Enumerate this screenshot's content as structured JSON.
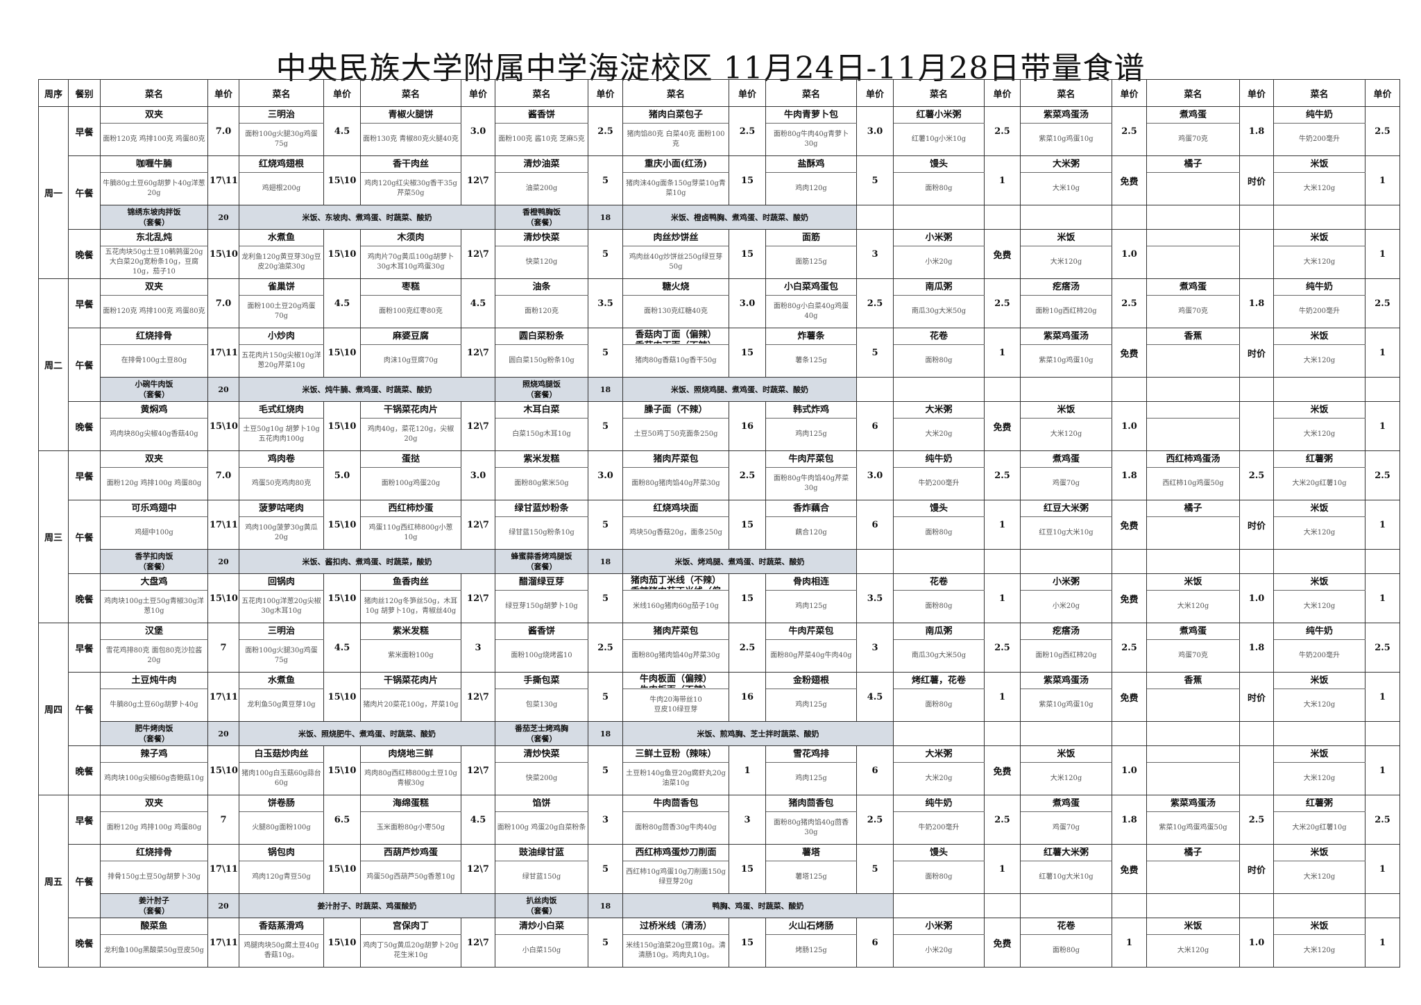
{
  "title": "中央民族大学附属中学海淀校区 11月24日-11月28日带量食谱",
  "header": {
    "week": "周序",
    "meal": "餐别",
    "dish": "菜名",
    "price": "单价"
  },
  "meal_labels": {
    "breakfast": "早餐",
    "lunch": "午餐",
    "dinner": "晚餐"
  },
  "set_bg_color": "#d6dce4",
  "days": [
    {
      "label": "周一",
      "breakfast": [
        [
          "双夹",
          "面粉120克 鸡排100克 鸡蛋80克",
          "7.0"
        ],
        [
          "三明治",
          "面粉100g火腿30g鸡蛋75g",
          "4.5"
        ],
        [
          "青椒火腿饼",
          "面粉130克 青椒80克火腿40克",
          "3.0"
        ],
        [
          "酱香饼",
          "面粉100克 酱10克 芝麻5克",
          "2.5"
        ],
        [
          "猪肉白菜包子",
          "猪肉馅80克 白菜40克 面粉100克",
          "2.5"
        ],
        [
          "牛肉青萝卜包",
          "面粉80g牛肉40g青萝卜30g",
          "3.0"
        ],
        [
          "红薯小米粥",
          "红薯10g小米10g",
          "2.5"
        ],
        [
          "紫菜鸡蛋汤",
          "紫菜10g鸡蛋10g",
          "2.5"
        ],
        [
          "煮鸡蛋",
          "鸡蛋70克",
          "1.8"
        ],
        [
          "纯牛奶",
          "牛奶200毫升",
          "2.5"
        ]
      ],
      "lunch": [
        [
          "咖喱牛腩",
          "牛腩80g土豆60g胡萝卜40g洋葱20g",
          "17\\11"
        ],
        [
          "红烧鸡翅根",
          "鸡翅根200g",
          "15\\10"
        ],
        [
          "香干肉丝",
          "鸡肉120g红尖椒30g香干35g芹菜50g",
          "12\\7"
        ],
        [
          "清炒油菜",
          "油菜200g",
          "5"
        ],
        [
          "重庆小面(红汤)",
          "猪肉沫40g面条150g芽菜10g青菜10g",
          "15"
        ],
        [
          "盐酥鸡",
          "鸡肉120g",
          "5"
        ],
        [
          "馒头",
          "面粉80g",
          "1"
        ],
        [
          "大米粥",
          "大米10g",
          "免费"
        ],
        [
          "橘子",
          "",
          "时价"
        ],
        [
          "米饭",
          "大米120g",
          "1"
        ]
      ],
      "sets": [
        [
          "锦绣东坡肉拌饭\n（套餐）",
          "20",
          "米饭、东坡肉、煮鸡蛋、时蔬菜、酸奶"
        ],
        [
          "香橙鸭胸饭\n（套餐）",
          "18",
          "米饭、橙卤鸭胸、煮鸡蛋、时蔬菜、酸奶"
        ]
      ],
      "dinner": [
        [
          "东北乱炖",
          "五花肉块50g土豆10鹌鹑蛋20g大白菜20g宽粉条10g，豆腐10g，茄子10",
          "15\\10"
        ],
        [
          "水煮鱼",
          "龙利鱼120g黄豆芽30g豆皮20g油菜30g",
          "15\\10"
        ],
        [
          "木须肉",
          "鸡肉片70g黄瓜100g胡萝卜30g木耳10g鸡蛋30g",
          "12\\7"
        ],
        [
          "清炒快菜",
          "快菜120g",
          "5"
        ],
        [
          "肉丝炒饼丝",
          "鸡肉丝40g炒饼丝250g绿豆芽50g",
          "15"
        ],
        [
          "面筋",
          "面筋125g",
          "3"
        ],
        [
          "小米粥",
          "小米20g",
          "免费"
        ],
        [
          "米饭",
          "大米120g",
          "1.0"
        ],
        [
          "",
          "",
          ""
        ],
        [
          "米饭",
          "大米120g",
          "1"
        ]
      ]
    },
    {
      "label": "周二",
      "breakfast": [
        [
          "双夹",
          "面粉120克 鸡排100克 鸡蛋80克",
          "7.0"
        ],
        [
          "雀巢饼",
          "面粉100土豆20g鸡蛋70g",
          "4.5"
        ],
        [
          "枣糕",
          "面粉100克红枣80克",
          "4.5"
        ],
        [
          "油条",
          "面粉120克",
          "3.5"
        ],
        [
          "糖火烧",
          "面粉130克红糖40克",
          "3.0"
        ],
        [
          "小白菜鸡蛋包",
          "面粉80g小白菜40g鸡蛋40g",
          "2.5"
        ],
        [
          "南瓜粥",
          "南瓜30g大米50g",
          "2.5"
        ],
        [
          "疙瘩汤",
          "面粉10g西红柿20g",
          "2.5"
        ],
        [
          "煮鸡蛋",
          "鸡蛋70克",
          "1.8"
        ],
        [
          "纯牛奶",
          "牛奶200毫升",
          "2.5"
        ]
      ],
      "lunch": [
        [
          "红烧排骨",
          "在排骨100g土豆80g",
          "17\\11"
        ],
        [
          "小炒肉",
          "五花肉片150g尖椒10g洋葱20g芹菜10g",
          "15\\10"
        ],
        [
          "麻婆豆腐",
          "肉沫10g豆腐70g",
          "12\\7"
        ],
        [
          "圆白菜粉条",
          "圆白菜150g粉条10g",
          "5"
        ],
        [
          "香菇肉丁面（偏辣）\n香菇肉丁面（不辣）",
          "猪肉80g香菇10g香干50g",
          "15"
        ],
        [
          "炸薯条",
          "薯条125g",
          "5"
        ],
        [
          "花卷",
          "面粉80g",
          "1"
        ],
        [
          "紫菜鸡蛋汤",
          "紫菜10g鸡蛋10g",
          "免费"
        ],
        [
          "香蕉",
          "",
          "时价"
        ],
        [
          "米饭",
          "大米120g",
          "1"
        ]
      ],
      "sets": [
        [
          "小碗牛肉饭\n（套餐）",
          "20",
          "米饭、炖牛腩、煮鸡蛋、时蔬菜、酸奶"
        ],
        [
          "照烧鸡腿饭\n（套餐）",
          "18",
          "米饭、照烧鸡腿、煮鸡蛋、时蔬菜、酸奶"
        ]
      ],
      "dinner": [
        [
          "黄焖鸡",
          "鸡肉块80g尖椒40g香菇40g",
          "15\\10"
        ],
        [
          "毛式红烧肉",
          "土豆50g10g 胡萝卜10g五花肉肉100g",
          "15\\10"
        ],
        [
          "干锅菜花肉片",
          "鸡肉40g，菜花120g，尖椒20g",
          "12\\7"
        ],
        [
          "木耳白菜",
          "白菜150g木耳10g",
          "5"
        ],
        [
          "臊子面（不辣）",
          "土豆50鸡丁50克面条250g",
          "16"
        ],
        [
          "韩式炸鸡",
          "鸡肉125g",
          "6"
        ],
        [
          "大米粥",
          "大米20g",
          "免费"
        ],
        [
          "米饭",
          "大米120g",
          "1.0"
        ],
        [
          "",
          "",
          ""
        ],
        [
          "米饭",
          "大米120g",
          "1"
        ]
      ]
    },
    {
      "label": "周三",
      "breakfast": [
        [
          "双夹",
          "面粉120g 鸡排100g 鸡蛋80g",
          "7.0"
        ],
        [
          "鸡肉卷",
          "鸡蛋50克鸡肉80克",
          "5.0"
        ],
        [
          "蛋挞",
          "面粉100g鸡蛋20g",
          "3.0"
        ],
        [
          "紫米发糕",
          "面粉80g紫米50g",
          "3.0"
        ],
        [
          "猪肉芹菜包",
          "面粉80g猪肉馅40g芹菜30g",
          "2.5"
        ],
        [
          "牛肉芹菜包",
          "面粉80g牛肉馅40g芹菜30g",
          "3.0"
        ],
        [
          "纯牛奶",
          "牛奶200毫升",
          "2.5"
        ],
        [
          "煮鸡蛋",
          "鸡蛋70g",
          "1.8"
        ],
        [
          "西红柿鸡蛋汤",
          "西红柿10g鸡蛋50g",
          "2.5"
        ],
        [
          "红薯粥",
          "大米20g红薯10g",
          "2.5"
        ]
      ],
      "lunch": [
        [
          "可乐鸡翅中",
          "鸡翅中100g",
          "17\\11"
        ],
        [
          "菠萝咕咾肉",
          "鸡肉100g菠萝30g黄瓜20g",
          "15\\10"
        ],
        [
          "西红柿炒蛋",
          "鸡蛋110g西红柿800g小葱10g",
          "12\\7"
        ],
        [
          "绿甘蓝炒粉条",
          "绿甘蓝150g粉条10g",
          "5"
        ],
        [
          "红烧鸡块面",
          "鸡块50g香菇20g，面条250g",
          "15"
        ],
        [
          "香炸藕合",
          "藕合120g",
          "6"
        ],
        [
          "馒头",
          "面粉80g",
          "1"
        ],
        [
          "红豆大米粥",
          "红豆10g大米10g",
          "免费"
        ],
        [
          "橘子",
          "",
          "时价"
        ],
        [
          "米饭",
          "大米120g",
          "1"
        ]
      ],
      "sets": [
        [
          "香芋扣肉饭\n（套餐）",
          "20",
          "米饭、酱扣肉、煮鸡蛋、时蔬菜，酸奶"
        ],
        [
          "蜂蜜蒜香烤鸡腿饭\n（套餐）",
          "18",
          "米饭、烤鸡腿、煮鸡蛋、时蔬菜、酸奶"
        ]
      ],
      "dinner": [
        [
          "大盘鸡",
          "鸡肉块100g土豆50g青椒30g洋葱10g",
          "15\\10"
        ],
        [
          "回锅肉",
          "五花肉100g洋葱20g尖椒30g木耳10g",
          "15\\10"
        ],
        [
          "鱼香肉丝",
          "猪肉丝120g冬笋丝50g，木耳10g 胡萝卜10g，青椒丝40g",
          "12\\7"
        ],
        [
          "醋溜绿豆芽",
          "绿豆芽150g胡萝卜10g",
          "5"
        ],
        [
          "猪肉茄丁米线（不辣）\n香辣猪肉茄丁米线（偏辣）",
          "米线160g猪肉60g茄子10g",
          "15"
        ],
        [
          "骨肉相连",
          "鸡肉125g",
          "3.5"
        ],
        [
          "花卷",
          "面粉80g",
          "1"
        ],
        [
          "小米粥",
          "小米20g",
          "免费"
        ],
        [
          "米饭",
          "大米120g",
          "1.0"
        ],
        [
          "米饭",
          "大米120g",
          "1"
        ]
      ]
    },
    {
      "label": "周四",
      "breakfast": [
        [
          "汉堡",
          "雪花鸡排80克 面包80克沙拉酱20g",
          "7"
        ],
        [
          "三明治",
          "面粉100g火腿30g鸡蛋75g",
          "4.5"
        ],
        [
          "紫米发糕",
          "紫米面粉100g",
          "3"
        ],
        [
          "酱香饼",
          "面粉100g烧烤酱10",
          "2.5"
        ],
        [
          "猪肉芹菜包",
          "面粉80g猪肉馅40g芹菜30g",
          "2.5"
        ],
        [
          "牛肉芹菜包",
          "面粉80g芹菜40g牛肉40g",
          "3"
        ],
        [
          "南瓜粥",
          "南瓜30g大米50g",
          "2.5"
        ],
        [
          "疙瘩汤",
          "面粉10g西红柿20g",
          "2.5"
        ],
        [
          "煮鸡蛋",
          "鸡蛋70克",
          "1.8"
        ],
        [
          "纯牛奶",
          "牛奶200毫升",
          "2.5"
        ]
      ],
      "lunch": [
        [
          "土豆炖牛肉",
          "牛腩80g土豆60g胡萝卜40g",
          "17\\11"
        ],
        [
          "水煮鱼",
          "龙利鱼50g黄豆芽10g",
          "15\\10"
        ],
        [
          "干锅菜花肉片",
          "猪肉片20菜花100g，芹菜10g",
          "12\\7"
        ],
        [
          "手撕包菜",
          "包菜130g",
          "5"
        ],
        [
          "牛肉板面（偏辣）\n牛肉板面（不辣）",
          "牛肉20海带丝10\n豆皮10绿豆芽",
          "16"
        ],
        [
          "金粉翅根",
          "鸡肉125g",
          "4.5"
        ],
        [
          "烤红薯，花卷",
          "面粉80g",
          "1"
        ],
        [
          "紫菜鸡蛋汤",
          "紫菜10g鸡蛋10g",
          "免费"
        ],
        [
          "香蕉",
          "",
          "时价"
        ],
        [
          "米饭",
          "大米120g",
          "1"
        ]
      ],
      "sets": [
        [
          "肥牛烤肉饭\n（套餐）",
          "20",
          "米饭、照烧肥牛、煮鸡蛋、时蔬菜、酸奶"
        ],
        [
          "番茄芝士烤鸡胸\n（套餐）",
          "18",
          "米饭、煎鸡胸、芝士拌时蔬菜、酸奶"
        ]
      ],
      "dinner": [
        [
          "辣子鸡",
          "鸡肉块100g尖椒60g杏鲍菇10g",
          "15\\10"
        ],
        [
          "白玉菇炒肉丝",
          "猪肉100g白玉菇60g蒜台60g",
          "15\\10"
        ],
        [
          "肉烧地三鲜",
          "鸡肉80g西红柿800g土豆10g青椒30g",
          "12\\7"
        ],
        [
          "清炒快菜",
          "快菜200g",
          "5"
        ],
        [
          "三鲜土豆粉（辣味）",
          "土豆粉140g鱼豆20g腐虾丸20g油菜10g",
          "1"
        ],
        [
          "雪花鸡排",
          "鸡肉125g",
          "6"
        ],
        [
          "大米粥",
          "大米20g",
          "免费"
        ],
        [
          "米饭",
          "大米120g",
          "1.0"
        ],
        [
          "",
          "",
          ""
        ],
        [
          "米饭",
          "大米120g",
          "1"
        ]
      ]
    },
    {
      "label": "周五",
      "breakfast": [
        [
          "双夹",
          "面粉120g 鸡排100g 鸡蛋80g",
          "7"
        ],
        [
          "饼卷肠",
          "火腿80g面粉100g",
          "6.5"
        ],
        [
          "海绵蛋糕",
          "玉米面粉80g小枣50g",
          "4.5"
        ],
        [
          "馅饼",
          "面粉100g 鸡蛋20g白菜粉条",
          "3"
        ],
        [
          "牛肉茴香包",
          "面粉80g茴香30g牛肉40g",
          "3"
        ],
        [
          "猪肉茴香包",
          "面粉80g猪肉馅40g茴香30g",
          "2.5"
        ],
        [
          "纯牛奶",
          "牛奶200毫升",
          "2.5"
        ],
        [
          "煮鸡蛋",
          "鸡蛋70g",
          "1.8"
        ],
        [
          "紫菜鸡蛋汤",
          "紫菜10g鸡蛋鸡蛋50g",
          "2.5"
        ],
        [
          "红薯粥",
          "大米20g红薯10g",
          "2.5"
        ]
      ],
      "lunch": [
        [
          "红烧排骨",
          "排骨150g土豆50g胡萝卜30g",
          "17\\11"
        ],
        [
          "锅包肉",
          "鸡肉120g青豆50g",
          "15\\10"
        ],
        [
          "西葫芦炒鸡蛋",
          "鸡蛋50g西葫芦50g香葱10g",
          "12\\7"
        ],
        [
          "豉油绿甘蓝",
          "绿甘蓝150g",
          "5"
        ],
        [
          "西红柿鸡蛋炒刀削面",
          "西红柿10g鸡蛋10g刀削面150g绿豆芽20g",
          "15"
        ],
        [
          "薯塔",
          "薯塔125g",
          "5"
        ],
        [
          "馒头",
          "面粉80g",
          "1"
        ],
        [
          "红薯大米粥",
          "红薯10g大米10g",
          "免费"
        ],
        [
          "橘子",
          "",
          "时价"
        ],
        [
          "米饭",
          "大米120g",
          "1"
        ]
      ],
      "sets": [
        [
          "姜汁肘子\n（套餐）",
          "20",
          "姜汁肘子、时蔬菜、鸡蛋酸奶"
        ],
        [
          "扒丝肉饭\n（套餐）",
          "18",
          "鸭胸、鸡蛋、时蔬菜、酸奶"
        ]
      ],
      "dinner": [
        [
          "酸菜鱼",
          "龙利鱼100g黑酸菜50g豆皮50g",
          "17\\11"
        ],
        [
          "香菇蒸滑鸡",
          "鸡腿肉块50g腐土豆40g香菇10g。",
          "15\\10"
        ],
        [
          "宫保肉丁",
          "鸡肉丁50g黄瓜20g胡萝卜20g花生米10g",
          "12\\7"
        ],
        [
          "清炒小白菜",
          "小白菜150g",
          "5"
        ],
        [
          "过桥米线（清汤）",
          "米线150g油菜20g豆腐10g。清清肠10g。鸡肉丸10g。",
          "15"
        ],
        [
          "火山石烤肠",
          "烤肠125g",
          "6"
        ],
        [
          "小米粥",
          "小米20g",
          "免费"
        ],
        [
          "花卷",
          "面粉80g",
          "1"
        ],
        [
          "米饭",
          "大米120g",
          "1.0"
        ],
        [
          "米饭",
          "大米120g",
          "1"
        ]
      ]
    }
  ]
}
